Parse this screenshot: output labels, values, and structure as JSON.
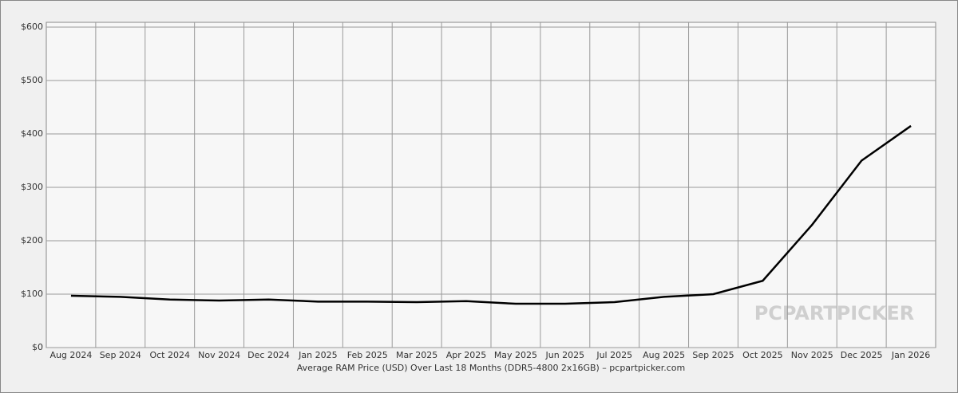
{
  "chart_data": {
    "type": "line",
    "x_label": "Average RAM Price (USD) Over Last 18 Months (DDR5-4800 2x16GB) – pcpartpicker.com",
    "watermark": "PCPARTPICKER",
    "categories": [
      "Aug 2024",
      "Sep 2024",
      "Oct 2024",
      "Nov 2024",
      "Dec 2024",
      "Jan 2025",
      "Feb 2025",
      "Mar 2025",
      "Apr 2025",
      "May 2025",
      "Jun 2025",
      "Jul 2025",
      "Aug 2025",
      "Sep 2025",
      "Oct 2025",
      "Nov 2025",
      "Dec 2025",
      "Jan 2026"
    ],
    "series": [
      {
        "color": "#000000",
        "values": [
          97,
          95,
          90,
          88,
          90,
          86,
          86,
          85,
          87,
          82,
          82,
          85,
          95,
          100,
          125,
          230,
          350,
          415
        ]
      }
    ],
    "ylim": [
      0,
      600
    ],
    "yticks": [
      {
        "value": 0,
        "label": "$0"
      },
      {
        "value": 100,
        "label": "$100"
      },
      {
        "value": 200,
        "label": "$200"
      },
      {
        "value": 300,
        "label": "$300"
      },
      {
        "value": 400,
        "label": "$400"
      },
      {
        "value": 500,
        "label": "$500"
      },
      {
        "value": 600,
        "label": "$600"
      }
    ],
    "grid": true
  }
}
